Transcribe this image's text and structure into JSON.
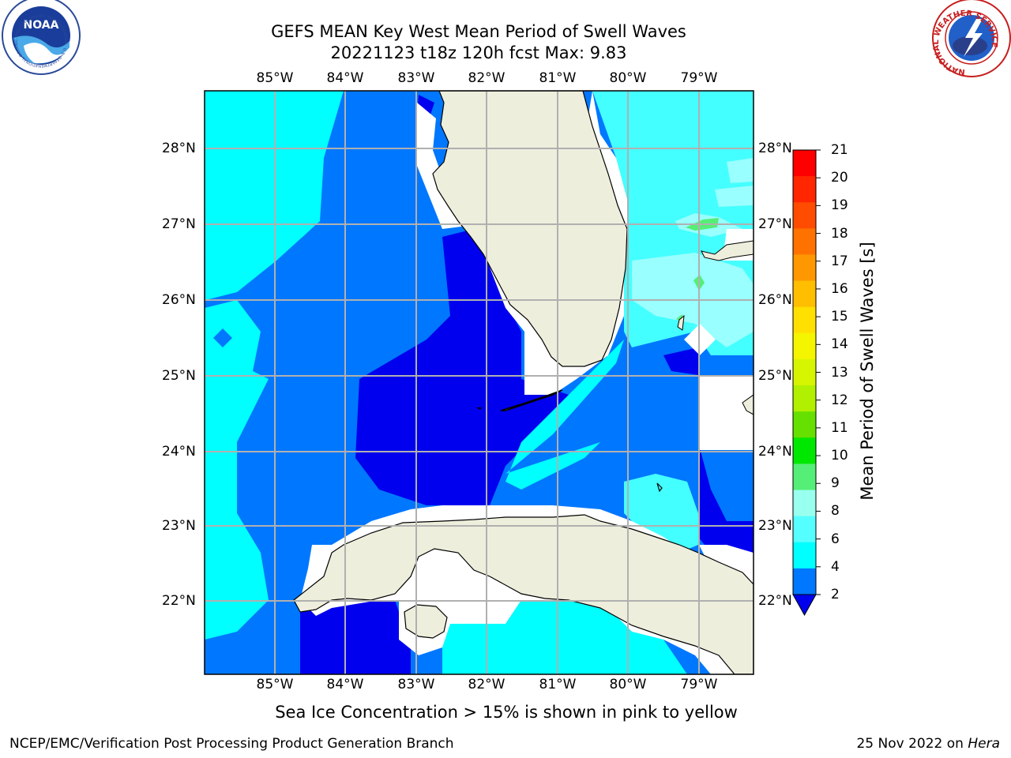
{
  "title_line1": "GEFS MEAN Key West Mean Period of Swell Waves",
  "title_line2": "20221123 t18z 120h fcst   Max: 9.83",
  "lon_labels": [
    "85°W",
    "84°W",
    "83°W",
    "82°W",
    "81°W",
    "80°W",
    "79°W"
  ],
  "lat_labels": [
    "28°N",
    "27°N",
    "26°N",
    "25°N",
    "24°N",
    "23°N",
    "22°N"
  ],
  "colorbar": {
    "label": "Mean Period of Swell Waves [s]",
    "ticks": [
      "21",
      "20",
      "19",
      "18",
      "17",
      "16",
      "15",
      "14",
      "13",
      "12",
      "11",
      "10",
      "9",
      "8",
      "6",
      "4",
      "2"
    ],
    "colors": [
      "#ff0000",
      "#ff2600",
      "#ff4c00",
      "#ff7200",
      "#ff9800",
      "#ffbe00",
      "#ffe000",
      "#f5f500",
      "#d6f500",
      "#b0f000",
      "#66e000",
      "#00e800",
      "#55ee77",
      "#99ffee",
      "#55ffff",
      "#00ffff",
      "#0077ff"
    ],
    "underflow_color": "#0000ee"
  },
  "palette": {
    "ocean_2_4": "#0077ff",
    "ocean_low": "#0000ee",
    "ocean_4_6": "#00ffff",
    "ocean_6_8": "#44ffff",
    "ocean_8_9": "#99ffff",
    "ocean_9_10": "#55ee77",
    "land": "#eeeedd",
    "masked": "#ffffff",
    "grid": "#b0b0b0"
  },
  "note": "Sea Ice Concentration > 15% is shown in pink to yellow",
  "footer_left": "NCEP/EMC/Verification Post Processing Product Generation Branch",
  "footer_date": "25 Nov 2022 on ",
  "footer_host": "Hera",
  "logos": {
    "left": "NOAA",
    "left_ring": "NATIONAL OCEANIC AND ATMOSPHERIC ADMINISTRATION · U.S. DEPARTMENT OF COMMERCE",
    "right": "NATIONAL WEATHER SERVICE"
  }
}
